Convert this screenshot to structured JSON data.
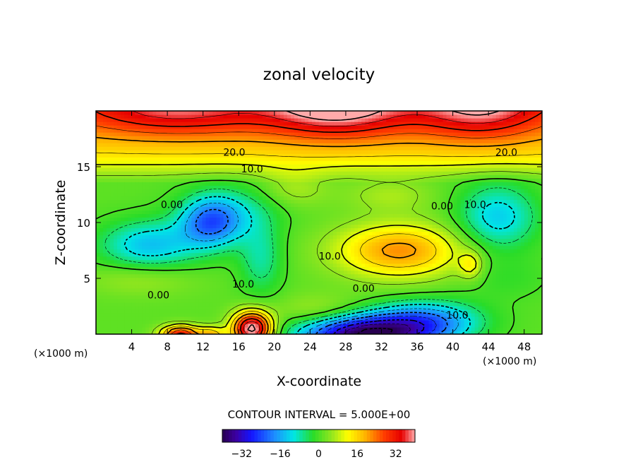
{
  "chart_data": {
    "type": "heatmap",
    "title": "zonal velocity",
    "xlabel": "X-coordinate",
    "ylabel": "Z-coordinate",
    "x_unit_left": "(×1000 m)",
    "x_unit_right": "(×1000 m)",
    "xlim": [
      0,
      50
    ],
    "ylim": [
      0,
      20
    ],
    "x_ticks": [
      4,
      8,
      12,
      16,
      20,
      24,
      28,
      32,
      36,
      40,
      44,
      48
    ],
    "y_ticks": [
      5,
      10,
      15
    ],
    "contour_interval_text": "CONTOUR INTERVAL = 5.000E+00",
    "contour_interval": 5.0,
    "colorbar": {
      "range": [
        -40,
        40
      ],
      "ticks": [
        -32,
        -16,
        0,
        16,
        32
      ],
      "tick_labels": [
        "−32",
        "−16",
        "0",
        "16",
        "32"
      ]
    },
    "contour_labels": [
      {
        "text": "20.0",
        "x": 15.5,
        "y": 16.3
      },
      {
        "text": "20.0",
        "x": 46.0,
        "y": 16.3
      },
      {
        "text": "10.0",
        "x": 17.5,
        "y": 14.8
      },
      {
        "text": "0.00",
        "x": 8.5,
        "y": 11.6
      },
      {
        "text": "0.00",
        "x": 38.8,
        "y": 11.5
      },
      {
        "text": "10.0",
        "x": 42.5,
        "y": 11.6
      },
      {
        "text": "10.0",
        "x": 26.2,
        "y": 7.0
      },
      {
        "text": "10.0",
        "x": 16.5,
        "y": 4.5
      },
      {
        "text": "0.00",
        "x": 7.0,
        "y": 3.5
      },
      {
        "text": "0.00",
        "x": 30.0,
        "y": 4.1
      },
      {
        "text": "10.0",
        "x": 40.5,
        "y": 1.7
      }
    ],
    "field_features": [
      {
        "x": 9,
        "z": 20,
        "sx": 10,
        "sz": 2.2,
        "value": 14
      },
      {
        "x": 27,
        "z": 20.5,
        "sx": 8,
        "sz": 2.8,
        "value": 22
      },
      {
        "x": 43,
        "z": 20.5,
        "sx": 7,
        "sz": 3.0,
        "value": 18
      },
      {
        "x": 13,
        "z": 10,
        "sx": 3.5,
        "sz": 2.2,
        "value": -22
      },
      {
        "x": 6,
        "z": 8,
        "sx": 5.5,
        "sz": 2.2,
        "value": -15
      },
      {
        "x": 18.5,
        "z": 7,
        "sx": 2.5,
        "sz": 3.5,
        "value": -9
      },
      {
        "x": 16,
        "z": 11.5,
        "sx": 6,
        "sz": 2.2,
        "value": -6
      },
      {
        "x": 34,
        "z": 7.5,
        "sx": 7,
        "sz": 2.4,
        "value": 20
      },
      {
        "x": 42,
        "z": 6.2,
        "sx": 1.3,
        "sz": 1.2,
        "value": 10
      },
      {
        "x": 45,
        "z": 10.5,
        "sx": 4.5,
        "sz": 3.0,
        "value": -14
      },
      {
        "x": 33,
        "z": 12.5,
        "sx": 5,
        "sz": 1.5,
        "value": 5
      },
      {
        "x": 22,
        "z": 13,
        "sx": 4,
        "sz": 1.8,
        "value": 6
      },
      {
        "x": 30,
        "z": 0,
        "sx": 7,
        "sz": 1.7,
        "value": -40
      },
      {
        "x": 37,
        "z": 1.2,
        "sx": 6,
        "sz": 1.8,
        "value": -20
      },
      {
        "x": 17.5,
        "z": 0.5,
        "sx": 2.2,
        "sz": 1.5,
        "value": 42
      },
      {
        "x": 9.5,
        "z": 0,
        "sx": 2.2,
        "sz": 0.8,
        "value": 30
      },
      {
        "x": 13,
        "z": 0,
        "sx": 1.5,
        "sz": 0.7,
        "value": 15
      },
      {
        "x": 25,
        "z": 2,
        "sx": 5,
        "sz": 1.5,
        "value": 6
      },
      {
        "x": 5,
        "z": 5,
        "sx": 6,
        "sz": 1.5,
        "value": 5
      },
      {
        "x": 46,
        "z": 5,
        "sx": 5,
        "sz": 2.0,
        "value": -3
      }
    ]
  }
}
